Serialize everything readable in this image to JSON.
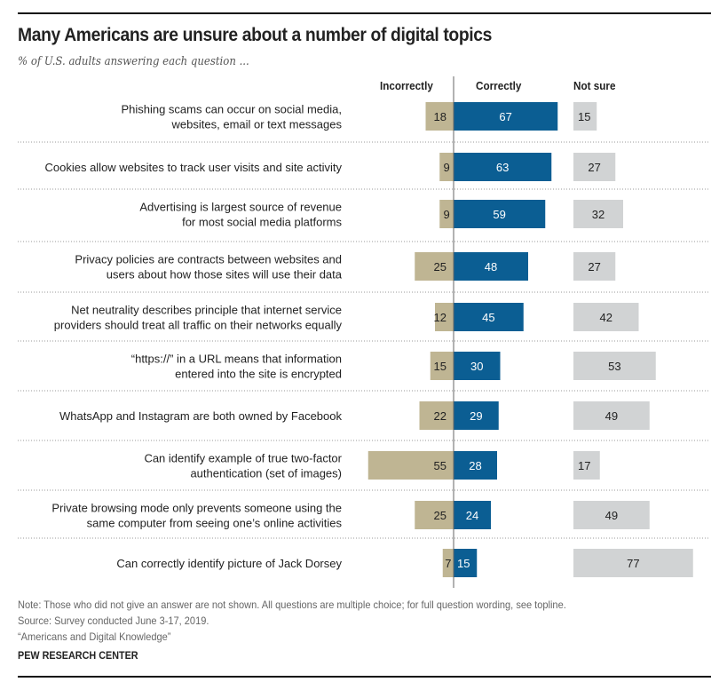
{
  "chart_data": {
    "type": "bar",
    "title": "Many Americans are unsure about a number of digital topics",
    "subtitle": "% of U.S. adults answering each question ...",
    "categories": [
      [
        "Phishing scams can occur on social media,",
        "websites, email or text messages"
      ],
      [
        "Cookies allow websites to track user visits and site activity"
      ],
      [
        "Advertising is largest source of revenue",
        "for most social media platforms"
      ],
      [
        "Privacy policies are contracts between websites and",
        "users about how those sites will use their data"
      ],
      [
        "Net neutrality describes principle that internet service",
        "providers should treat all traffic on their networks equally"
      ],
      [
        "“https://” in a URL means that information",
        "entered into the site is encrypted"
      ],
      [
        "WhatsApp and Instagram are both owned by Facebook"
      ],
      [
        "Can identify example of true two-factor",
        "authentication (set of images)"
      ],
      [
        "Private browsing mode only prevents someone using the",
        "same computer from seeing one’s online activities"
      ],
      [
        "Can correctly identify picture of Jack Dorsey"
      ]
    ],
    "series": [
      {
        "name": "Incorrectly",
        "color": "#bfb593",
        "values": [
          18,
          9,
          9,
          25,
          12,
          15,
          22,
          55,
          25,
          7
        ]
      },
      {
        "name": "Correctly",
        "color": "#0b5e93",
        "values": [
          67,
          63,
          59,
          48,
          45,
          30,
          29,
          28,
          24,
          15
        ]
      },
      {
        "name": "Not sure",
        "color": "#d1d3d4",
        "values": [
          15,
          27,
          32,
          27,
          42,
          53,
          49,
          17,
          49,
          77
        ]
      }
    ]
  },
  "notes": [
    "Note: Those who did not give an answer are not shown. All questions are multiple choice; for full question wording, see topline.",
    "Source: Survey conducted June 3-17, 2019.",
    "“Americans and Digital Knowledge”"
  ],
  "source_org": "PEW RESEARCH CENTER"
}
